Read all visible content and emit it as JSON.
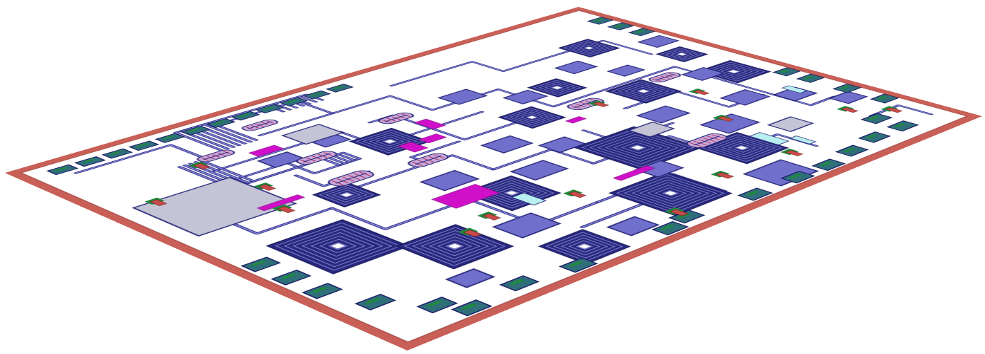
{
  "image": {
    "kind": "MMIC layout",
    "view": "3D perspective",
    "labels": []
  },
  "colors": {
    "substrate": "#ffffff",
    "substrate_edge": "#c96058",
    "metal_trace": "#2a2a86",
    "trace_highlight": "#8d8de0",
    "capacitor": "#7070cc",
    "resistor": "#d010c8",
    "bond_pad": "#2e6f7a",
    "pad_cap": "#1f8a3a",
    "via": "#c94a4a",
    "thin_film": "#b8f0f0",
    "air_bridge": "#c4c4d6"
  },
  "components": {
    "spiral_inductors": 16,
    "capacitors": 22,
    "transistor_cells": 9,
    "bond_pads": 36,
    "via_holes": 15
  }
}
